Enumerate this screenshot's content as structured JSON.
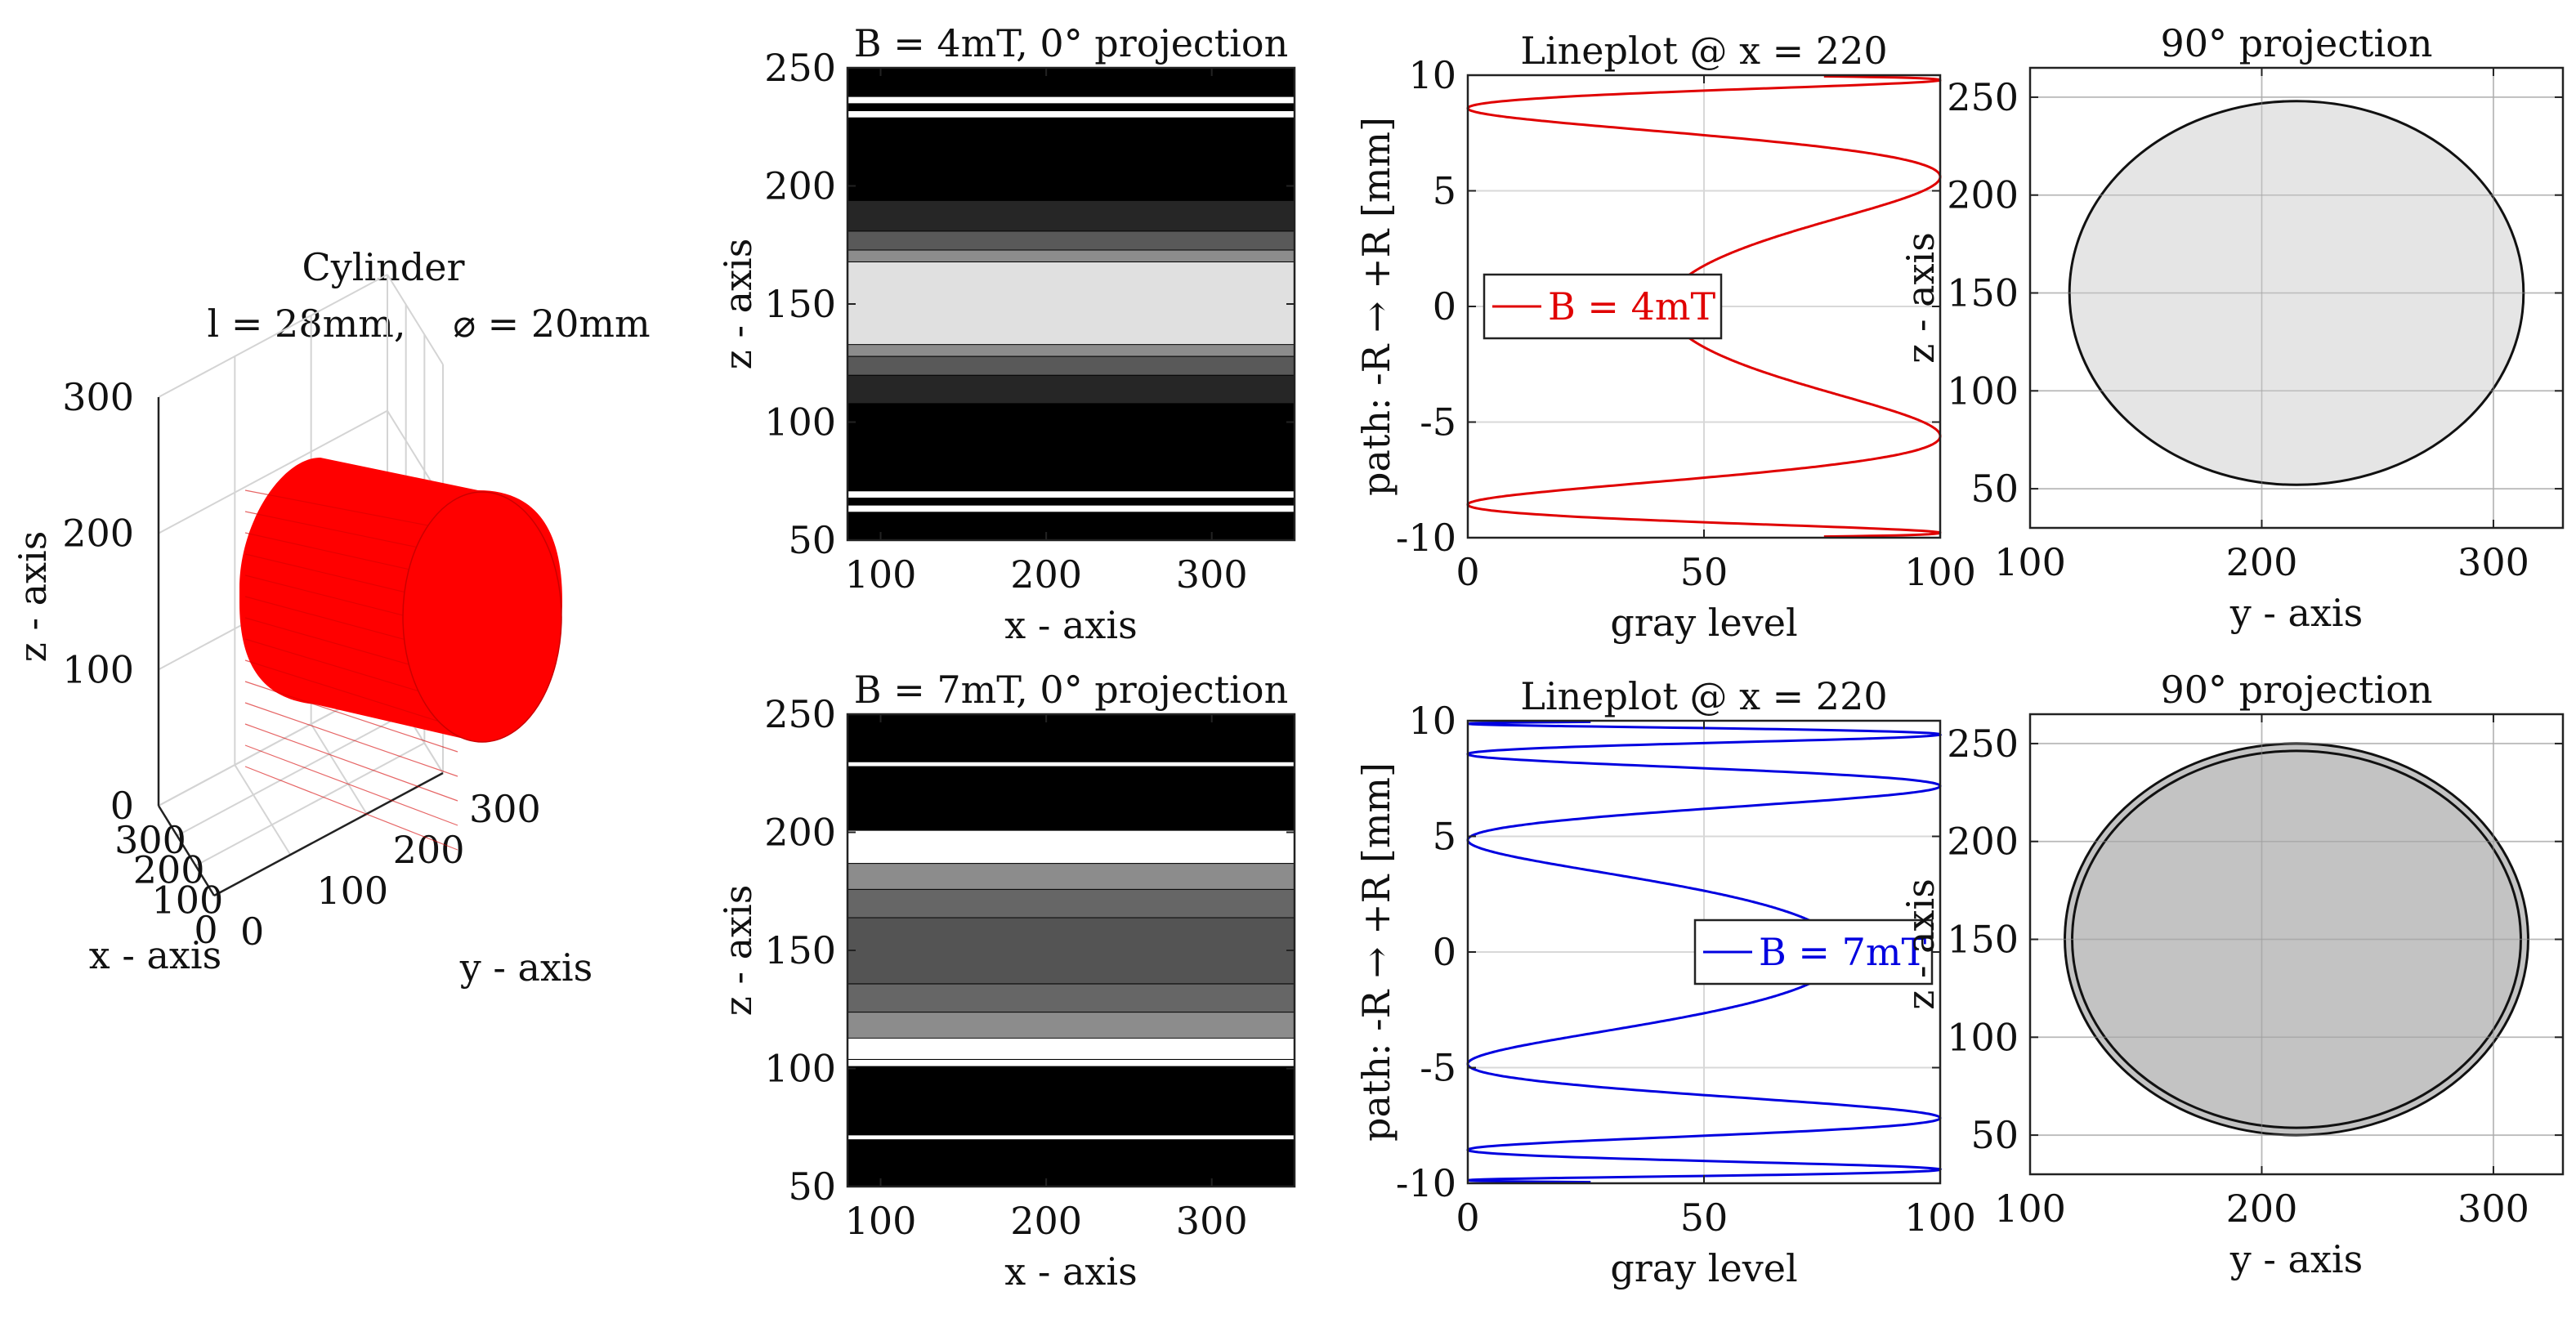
{
  "chart_data": [
    {
      "id": "cylinder3d",
      "type": "surface3d",
      "title": "Cylinder",
      "subtitle_length": "l = 28mm,",
      "subtitle_diameter": "⌀ = 20mm",
      "xlabel": "x - axis",
      "ylabel": "y - axis",
      "zlabel": "z - axis",
      "xticks": [
        "300",
        "200",
        "100",
        "0"
      ],
      "yticks": [
        "0",
        "100",
        "200",
        "300"
      ],
      "zticks": [
        "300",
        "200",
        "100",
        "0"
      ],
      "color": "#ff0000"
    },
    {
      "id": "proj0_4",
      "type": "heatmap",
      "title": "B = 4mT, 0° projection",
      "xlabel": "x - axis",
      "ylabel": "z - axis",
      "xlim": [
        80,
        350
      ],
      "ylim": [
        50,
        250
      ],
      "xticks": [
        100,
        200,
        300
      ],
      "yticks": [
        50,
        100,
        150,
        200,
        250
      ],
      "bands": [
        {
          "z0": 50,
          "z1": 62,
          "gray": 0
        },
        {
          "z0": 62,
          "z1": 65,
          "gray": 1
        },
        {
          "z0": 65,
          "z1": 68,
          "gray": 0
        },
        {
          "z0": 68,
          "z1": 71,
          "gray": 1
        },
        {
          "z0": 71,
          "z1": 108,
          "gray": 0
        },
        {
          "z0": 108,
          "z1": 120,
          "gray": 0.15
        },
        {
          "z0": 120,
          "z1": 128,
          "gray": 0.35
        },
        {
          "z0": 128,
          "z1": 133,
          "gray": 0.55
        },
        {
          "z0": 133,
          "z1": 168,
          "gray": 0.88
        },
        {
          "z0": 168,
          "z1": 173,
          "gray": 0.55
        },
        {
          "z0": 173,
          "z1": 181,
          "gray": 0.35
        },
        {
          "z0": 181,
          "z1": 194,
          "gray": 0.15
        },
        {
          "z0": 194,
          "z1": 229,
          "gray": 0
        },
        {
          "z0": 229,
          "z1": 232,
          "gray": 1
        },
        {
          "z0": 232,
          "z1": 235,
          "gray": 0
        },
        {
          "z0": 235,
          "z1": 238,
          "gray": 1
        },
        {
          "z0": 238,
          "z1": 250,
          "gray": 0
        }
      ]
    },
    {
      "id": "line4",
      "type": "line",
      "title": "Lineplot @ x = 220",
      "xlabel": "gray level",
      "ylabel": "path: -R → +R [mm]",
      "xlim": [
        0,
        100
      ],
      "ylim": [
        -10,
        10
      ],
      "xticks": [
        0,
        50,
        100
      ],
      "yticks": [
        -10,
        -5,
        0,
        5,
        10
      ],
      "legend_position": "center-left",
      "series": [
        {
          "name": "B = 4mT",
          "color": "#e00000",
          "k": 0.0016
        }
      ]
    },
    {
      "id": "proj90_4",
      "type": "scatter",
      "title": "90° projection",
      "xlabel": "y - axis",
      "ylabel": "z - axis",
      "xlim": [
        100,
        330
      ],
      "ylim": [
        30,
        265
      ],
      "xticks": [
        100,
        200,
        300
      ],
      "yticks": [
        50,
        100,
        150,
        200,
        250
      ],
      "circle": {
        "cx": 215,
        "cy": 150,
        "r": 98,
        "fill": "#e0e0e0",
        "double": false
      }
    },
    {
      "id": "proj0_7",
      "type": "heatmap",
      "title": "B = 7mT, 0° projection",
      "xlabel": "x - axis",
      "ylabel": "z - axis",
      "xlim": [
        80,
        350
      ],
      "ylim": [
        50,
        250
      ],
      "xticks": [
        100,
        200,
        300
      ],
      "yticks": [
        50,
        100,
        150,
        200,
        250
      ],
      "bands": [
        {
          "z0": 50,
          "z1": 70,
          "gray": 0
        },
        {
          "z0": 70,
          "z1": 72,
          "gray": 1
        },
        {
          "z0": 72,
          "z1": 101,
          "gray": 0
        },
        {
          "z0": 101,
          "z1": 104,
          "gray": 1
        },
        {
          "z0": 104,
          "z1": 113,
          "gray": 1
        },
        {
          "z0": 113,
          "z1": 124,
          "gray": 0.55
        },
        {
          "z0": 124,
          "z1": 136,
          "gray": 0.4
        },
        {
          "z0": 136,
          "z1": 164,
          "gray": 0.33
        },
        {
          "z0": 164,
          "z1": 176,
          "gray": 0.4
        },
        {
          "z0": 176,
          "z1": 187,
          "gray": 0.55
        },
        {
          "z0": 187,
          "z1": 201,
          "gray": 1
        },
        {
          "z0": 201,
          "z1": 228,
          "gray": 0
        },
        {
          "z0": 228,
          "z1": 230,
          "gray": 1
        },
        {
          "z0": 230,
          "z1": 250,
          "gray": 0
        }
      ]
    },
    {
      "id": "line7",
      "type": "line",
      "title": "Lineplot @ x = 220",
      "xlabel": "gray level",
      "ylabel": "path: -R → +R [mm]",
      "xlim": [
        0,
        100
      ],
      "ylim": [
        -10,
        10
      ],
      "xticks": [
        0,
        50,
        100
      ],
      "yticks": [
        -10,
        -5,
        0,
        5,
        10
      ],
      "legend_position": "center-right",
      "series": [
        {
          "name": "B = 7mT",
          "color": "#0000e0",
          "k": 0.0028
        }
      ]
    },
    {
      "id": "proj90_7",
      "type": "scatter",
      "title": "90° projection",
      "xlabel": "y - axis",
      "ylabel": "z - axis",
      "xlim": [
        100,
        330
      ],
      "ylim": [
        30,
        265
      ],
      "xticks": [
        100,
        200,
        300
      ],
      "yticks": [
        50,
        100,
        150,
        200,
        250
      ],
      "circle": {
        "cx": 215,
        "cy": 150,
        "r": 100,
        "fill": "#b9b9b9",
        "double": true
      }
    }
  ]
}
